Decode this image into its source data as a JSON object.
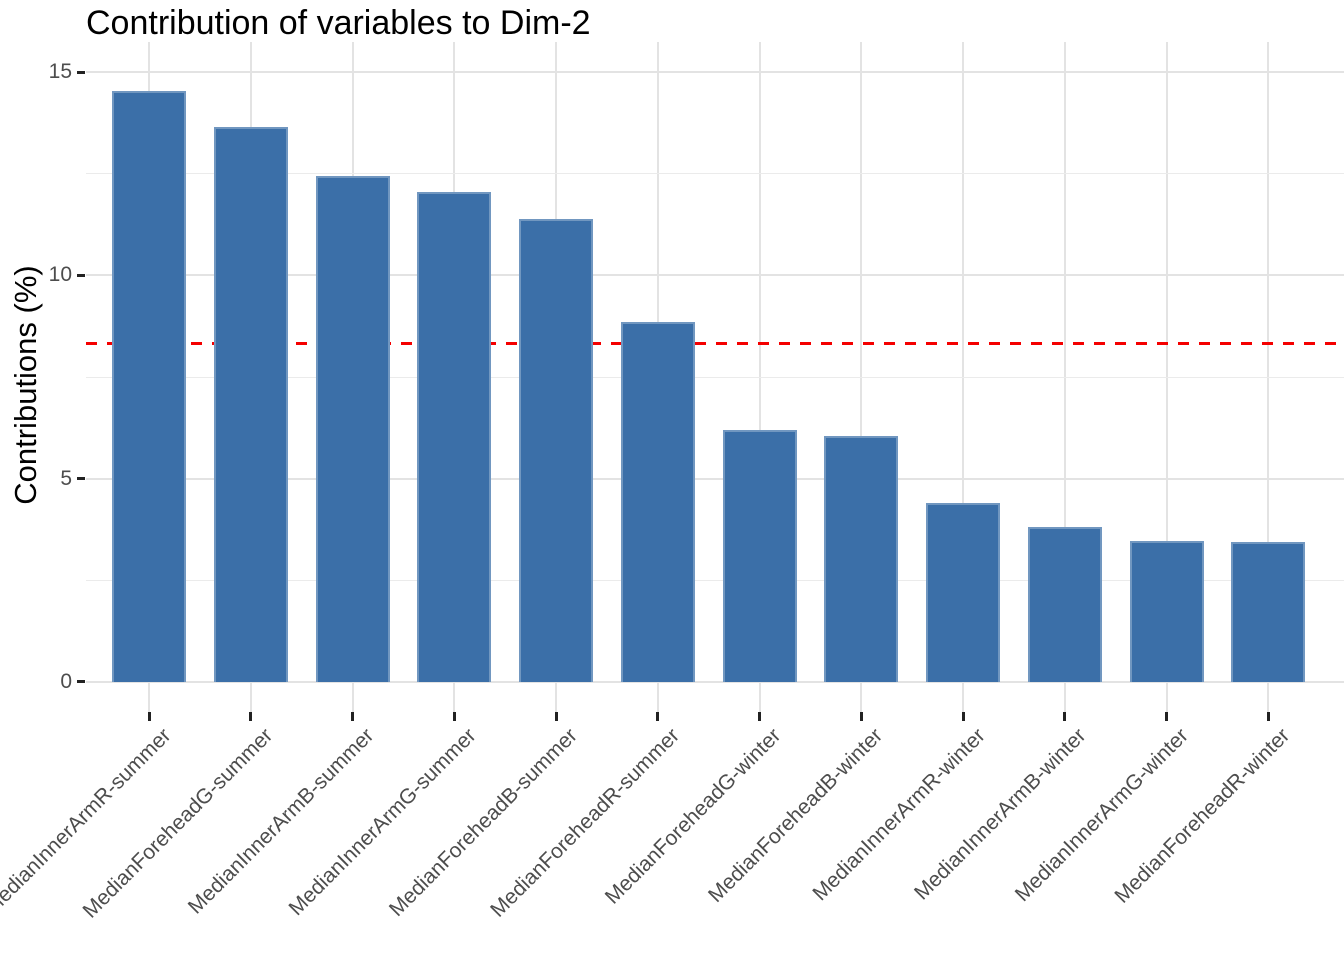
{
  "chart_data": {
    "type": "bar",
    "title": "Contribution of variables to Dim-2",
    "xlabel": "",
    "ylabel": "Contributions (%)",
    "categories": [
      "MedianInnerArmR-summer",
      "MedianForeheadG-summer",
      "MedianInnerArmB-summer",
      "MedianInnerArmG-summer",
      "MedianForeheadB-summer",
      "MedianForeheadR-summer",
      "MedianForeheadG-winter",
      "MedianForeheadB-winter",
      "MedianInnerArmR-winter",
      "MedianInnerArmB-winter",
      "MedianInnerArmG-winter",
      "MedianForeheadR-winter"
    ],
    "values": [
      14.55,
      13.65,
      12.45,
      12.05,
      11.4,
      8.85,
      6.2,
      6.05,
      4.4,
      3.8,
      3.45,
      3.43
    ],
    "yticks": [
      0,
      5,
      10,
      15
    ],
    "yticks_minor": [
      2.5,
      7.5,
      12.5
    ],
    "ylim": [
      -0.75,
      15.75
    ],
    "reference_line": {
      "value": 8.33,
      "style": "dashed",
      "color": "#F40000"
    },
    "grid": true,
    "legend": "none",
    "colors": {
      "bar_fill": "#3B6FA8",
      "grid_major": "#E3E3E3",
      "grid_minor": "#EBEBEB",
      "axis_text": "#4D4D4D",
      "tick_mark": "#222222",
      "title_text": "#000000"
    }
  }
}
